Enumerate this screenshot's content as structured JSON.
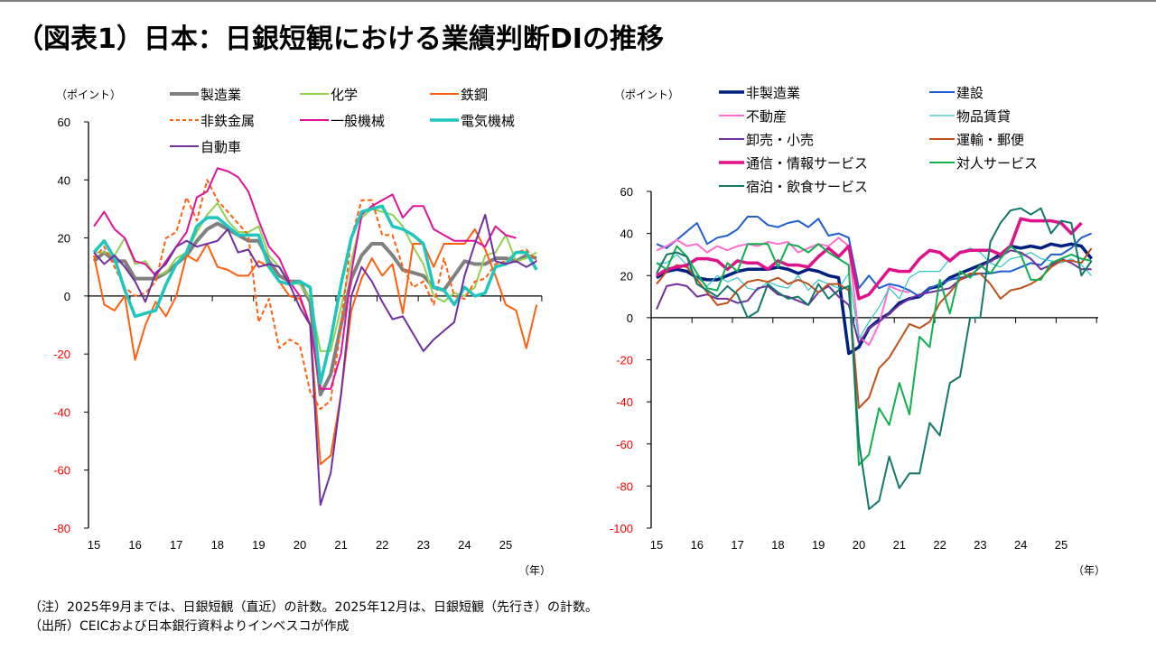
{
  "title": "（図表1）日本：日銀短観における業績判断DIの推移",
  "notes": {
    "note": "（注）2025年9月までは、日銀短観（直近）の計数。2025年12月は、日銀短観（先行き）の計数。",
    "source": "（出所）CEICおよび日本銀行資料よりインベスコが作成"
  },
  "colors": {
    "negative_tick": "#ff0000",
    "positive_tick": "#000000"
  },
  "chart_data": [
    {
      "type": "line",
      "title": "",
      "ylabel": "（ポイント）",
      "xlabel": "（年）",
      "ylim": [
        -80,
        60
      ],
      "yticks": [
        60,
        40,
        20,
        0,
        -20,
        -40,
        -60,
        -80
      ],
      "x_tick_labels": [
        "15",
        "16",
        "17",
        "18",
        "19",
        "20",
        "21",
        "22",
        "23",
        "24",
        "25"
      ],
      "x_start": "2015Q1",
      "x_frequency": "quarterly",
      "grid": false,
      "legend": "top",
      "series": [
        {
          "name": "製造業",
          "color": "#808080",
          "width": 4,
          "dash": false,
          "values": [
            12,
            15,
            12,
            12,
            6,
            6,
            6,
            8,
            11,
            14,
            19,
            23,
            25,
            23,
            21,
            19,
            19,
            12,
            7,
            5,
            5,
            -2,
            -34,
            -27,
            -10,
            6,
            14,
            18,
            18,
            14,
            9,
            8,
            7,
            3,
            2,
            7,
            12,
            11,
            11,
            13,
            13,
            12,
            14,
            13
          ]
        },
        {
          "name": "化学",
          "color": "#92d050",
          "width": 2,
          "dash": false,
          "values": [
            15,
            15,
            14,
            20,
            11,
            12,
            7,
            8,
            13,
            15,
            22,
            28,
            32,
            26,
            22,
            22,
            24,
            14,
            10,
            5,
            4,
            -1,
            -19,
            -19,
            -4,
            12,
            27,
            30,
            29,
            28,
            24,
            17,
            11,
            0,
            -2,
            1,
            0,
            3,
            14,
            15,
            21,
            12,
            13,
            15
          ]
        },
        {
          "name": "鉄鋼",
          "color": "#ff5f0f",
          "width": 2,
          "dash": false,
          "values": [
            14,
            -3,
            -5,
            0,
            -22,
            -10,
            -2,
            -7,
            0,
            14,
            12,
            18,
            10,
            9,
            7,
            7,
            12,
            10,
            5,
            0,
            -1,
            -10,
            -58,
            -55,
            -34,
            -5,
            6,
            13,
            7,
            11,
            -6,
            18,
            18,
            10,
            18,
            18,
            18,
            23,
            16,
            7,
            -3,
            -5,
            -18,
            -3
          ]
        },
        {
          "name": "非鉄金属",
          "color": "#ff5f0f",
          "width": 2,
          "dash": true,
          "values": [
            13,
            17,
            10,
            3,
            0,
            1,
            5,
            20,
            22,
            34,
            26,
            40,
            33,
            29,
            25,
            21,
            -9,
            -1,
            -18,
            -15,
            -17,
            -33,
            -39,
            -36,
            -10,
            20,
            33,
            33,
            21,
            21,
            10,
            3,
            5,
            -3,
            13,
            0,
            -1,
            5,
            6,
            11,
            12,
            15,
            16,
            12
          ]
        },
        {
          "name": "一般機械",
          "color": "#e0119a",
          "width": 2,
          "dash": false,
          "values": [
            24,
            29,
            23,
            20,
            12,
            11,
            7,
            12,
            17,
            22,
            34,
            36,
            44,
            43,
            41,
            36,
            26,
            17,
            13,
            5,
            0,
            -10,
            -32,
            -32,
            -20,
            8,
            28,
            31,
            33,
            35,
            27,
            31,
            31,
            23,
            21,
            19,
            19,
            19,
            17,
            24,
            21,
            20,
            null,
            null
          ]
        },
        {
          "name": "電気機械",
          "color": "#1fc6bd",
          "width": 3.5,
          "dash": false,
          "values": [
            15,
            19,
            13,
            2,
            -7,
            -6,
            -5,
            4,
            11,
            15,
            24,
            27,
            27,
            24,
            21,
            21,
            21,
            10,
            5,
            4,
            5,
            3,
            -30,
            -15,
            4,
            20,
            29,
            30,
            31,
            24,
            23,
            21,
            18,
            3,
            2,
            -3,
            3,
            0,
            1,
            10,
            11,
            15,
            15,
            9
          ]
        },
        {
          "name": "自動車",
          "color": "#7030a0",
          "width": 2,
          "dash": false,
          "values": [
            15,
            11,
            14,
            10,
            5,
            -2,
            8,
            11,
            17,
            19,
            17,
            18,
            19,
            23,
            15,
            16,
            10,
            11,
            10,
            4,
            -4,
            -10,
            -72,
            -61,
            -34,
            0,
            10,
            5,
            -2,
            -8,
            -7,
            -13,
            -19,
            -15,
            -12,
            -9,
            7,
            18,
            28,
            12,
            11,
            12,
            10,
            12,
            8,
            9,
            0
          ]
        }
      ]
    },
    {
      "type": "line",
      "title": "",
      "ylabel": "（ポイント）",
      "xlabel": "（年）",
      "ylim": [
        -100,
        60
      ],
      "yticks": [
        60,
        40,
        20,
        0,
        -20,
        -40,
        -60,
        -80,
        -100
      ],
      "x_tick_labels": [
        "15",
        "16",
        "17",
        "18",
        "19",
        "20",
        "21",
        "22",
        "23",
        "24",
        "25"
      ],
      "x_start": "2015Q1",
      "x_frequency": "quarterly",
      "grid": false,
      "legend": "top",
      "series": [
        {
          "name": "非製造業",
          "color": "#002080",
          "width": 3.5,
          "dash": false,
          "values": [
            19,
            22,
            23,
            22,
            19,
            18,
            18,
            20,
            22,
            23,
            23,
            23,
            24,
            23,
            21,
            23,
            22,
            20,
            19,
            -17,
            -14,
            -5,
            -1,
            2,
            7,
            9,
            10,
            14,
            15,
            19,
            21,
            23,
            25,
            27,
            30,
            34,
            33,
            34,
            33,
            35,
            34,
            35,
            34,
            28
          ]
        },
        {
          "name": "建設",
          "color": "#1f5fd0",
          "width": 2,
          "dash": false,
          "values": [
            35,
            33,
            37,
            41,
            45,
            35,
            38,
            39,
            42,
            48,
            48,
            44,
            43,
            45,
            46,
            43,
            47,
            39,
            40,
            38,
            14,
            20,
            14,
            16,
            15,
            13,
            10,
            14,
            16,
            18,
            19,
            20,
            21,
            21,
            22,
            22,
            24,
            26,
            25,
            30,
            30,
            33,
            38,
            40,
            46,
            49,
            39
          ]
        },
        {
          "name": "不動産",
          "color": "#ff6fcf",
          "width": 2,
          "dash": false,
          "values": [
            32,
            34,
            37,
            34,
            35,
            31,
            34,
            32,
            34,
            35,
            34,
            36,
            35,
            36,
            31,
            33,
            35,
            34,
            38,
            34,
            -9,
            -13,
            -3,
            15,
            13,
            12,
            null,
            null,
            null,
            null,
            null,
            null,
            null,
            null,
            null,
            null,
            null,
            null,
            null,
            null,
            null,
            null,
            null,
            null
          ]
        },
        {
          "name": "物品賃貸",
          "color": "#2ec7c7",
          "width": 1.2,
          "dash": false,
          "values": [
            26,
            26,
            30,
            25,
            19,
            15,
            20,
            17,
            19,
            14,
            13,
            17,
            15,
            14,
            20,
            13,
            18,
            16,
            14,
            21,
            -10,
            -2,
            5,
            14,
            9,
            19,
            22,
            22,
            22,
            28,
            31,
            33,
            31,
            26,
            24,
            28,
            29,
            31,
            28,
            27,
            26,
            28,
            25,
            20
          ]
        },
        {
          "name": "卸売・小売",
          "color": "#7030a0",
          "width": 2,
          "dash": false,
          "values": [
            4,
            15,
            16,
            15,
            10,
            11,
            9,
            9,
            7,
            8,
            14,
            15,
            11,
            10,
            8,
            6,
            12,
            15,
            10,
            6,
            -12,
            -5,
            -2,
            2,
            6,
            9,
            11,
            12,
            13,
            14,
            18,
            20,
            24,
            27,
            29,
            32,
            31,
            28,
            23,
            25,
            28,
            26,
            23,
            23
          ]
        },
        {
          "name": "運輸・郵便",
          "color": "#c0501a",
          "width": 2,
          "dash": false,
          "values": [
            16,
            22,
            25,
            24,
            18,
            12,
            6,
            7,
            13,
            17,
            18,
            17,
            19,
            16,
            18,
            16,
            12,
            16,
            16,
            13,
            -43,
            -38,
            -24,
            -19,
            -11,
            -3,
            -5,
            -2,
            7,
            12,
            18,
            21,
            21,
            16,
            9,
            13,
            14,
            16,
            19,
            24,
            27,
            27,
            26,
            33,
            32,
            29,
            27,
            22
          ]
        },
        {
          "name": "通信・情報サービス",
          "color": "#e0118a",
          "width": 3.5,
          "dash": false,
          "values": [
            20,
            23,
            24,
            25,
            28,
            28,
            27,
            23,
            27,
            26,
            26,
            23,
            27,
            25,
            25,
            24,
            29,
            33,
            29,
            34,
            9,
            11,
            17,
            23,
            22,
            22,
            28,
            32,
            31,
            27,
            31,
            32,
            32,
            32,
            30,
            34,
            47,
            46,
            46,
            46,
            45,
            40,
            45,
            null,
            null
          ]
        },
        {
          "name": "対人サービス",
          "color": "#10b050",
          "width": 2,
          "dash": false,
          "values": [
            26,
            23,
            34,
            29,
            21,
            14,
            13,
            26,
            22,
            35,
            35,
            35,
            24,
            35,
            34,
            31,
            35,
            31,
            28,
            25,
            -70,
            -65,
            -43,
            -51,
            -31,
            -46,
            -9,
            -14,
            18,
            2,
            22,
            19,
            25,
            21,
            28,
            34,
            30,
            18,
            18,
            26,
            28,
            30,
            28,
            27
          ]
        },
        {
          "name": "宿泊・飲食サービス",
          "color": "#13786a",
          "width": 2,
          "dash": false,
          "values": [
            21,
            30,
            31,
            29,
            16,
            13,
            10,
            15,
            11,
            0,
            3,
            16,
            12,
            9,
            10,
            6,
            16,
            9,
            13,
            15,
            -59,
            -91,
            -87,
            -66,
            -81,
            -74,
            -74,
            -50,
            -56,
            -31,
            -28,
            0,
            0,
            36,
            45,
            51,
            52,
            49,
            52,
            40,
            46,
            45,
            20,
            27
          ]
        }
      ]
    }
  ]
}
